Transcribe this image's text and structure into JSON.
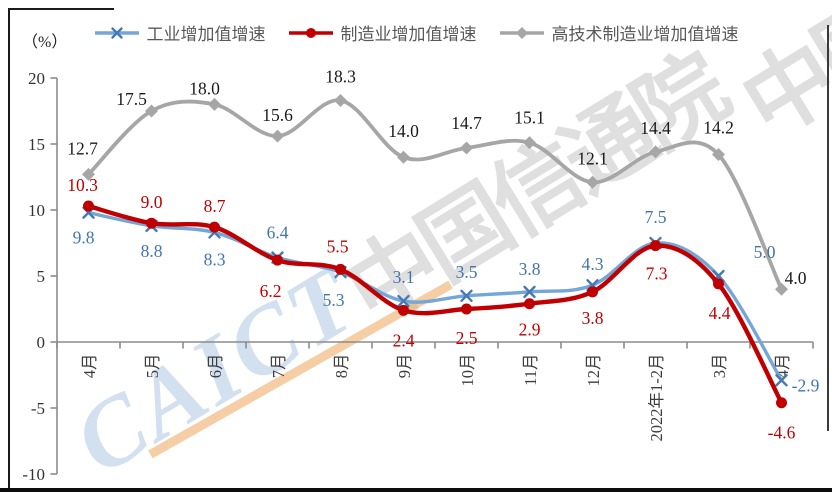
{
  "y_unit_label": "（%）",
  "watermark": {
    "cn": "中国信通院",
    "en": "CAICT"
  },
  "chart_data": {
    "type": "line",
    "smooth": true,
    "title": "",
    "xlabel": "",
    "ylabel": "（%）",
    "ylim": [
      -10,
      20
    ],
    "yticks": [
      20,
      15,
      10,
      5,
      0,
      -5,
      -10
    ],
    "grid": false,
    "legend_position": "top",
    "categories": [
      "4月",
      "5月",
      "6月",
      "7月",
      "8月",
      "9月",
      "10月",
      "11月",
      "12月",
      "2022年1-2月",
      "3月",
      "4月"
    ],
    "series": [
      {
        "name": "工业增加值增速",
        "color": "#74A6D8",
        "marker": "x",
        "marker_color": "#4679B4",
        "label_color": "#4175AD",
        "values": [
          9.8,
          8.8,
          8.3,
          6.4,
          5.3,
          3.1,
          3.5,
          3.8,
          4.3,
          7.5,
          5.0,
          -2.9
        ]
      },
      {
        "name": "制造业增加值增速",
        "color": "#C00000",
        "marker": "circle",
        "marker_color": "#C00000",
        "label_color": "#C00000",
        "values": [
          10.3,
          9.0,
          8.7,
          6.2,
          5.5,
          2.4,
          2.5,
          2.9,
          3.8,
          7.3,
          4.4,
          -4.6
        ]
      },
      {
        "name": "高技术制造业增加值增速",
        "color": "#A6A6A6",
        "marker": "diamond",
        "marker_color": "#A6A6A6",
        "label_color": "#1A1A1A",
        "values": [
          12.7,
          17.5,
          18.0,
          15.6,
          18.3,
          14.0,
          14.7,
          15.1,
          12.1,
          14.4,
          14.2,
          4.0
        ]
      }
    ]
  }
}
